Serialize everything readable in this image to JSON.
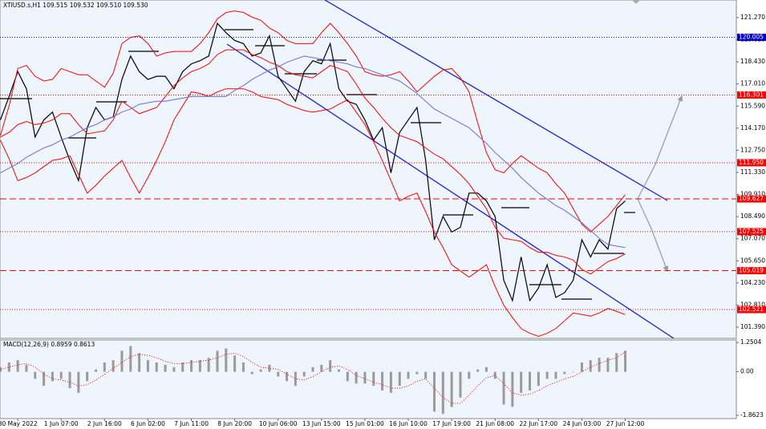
{
  "chart_data": [
    {
      "type": "line",
      "title": "XTIUSD.s,H1  109.515 109.532 109.510 109.530",
      "categories": [
        null,
        null,
        "30 May 2022",
        null,
        null,
        null,
        null,
        "1 Jun 07:00",
        null,
        null,
        null,
        null,
        "2 Jun 16:00",
        null,
        null,
        null,
        null,
        "6 Jun 02:00",
        null,
        null,
        null,
        null,
        "7 Jun 11:00",
        null,
        null,
        null,
        null,
        "8 Jun 20:00",
        null,
        null,
        null,
        null,
        "10 Jun 06:00",
        null,
        null,
        null,
        null,
        "13 Jun 15:00",
        null,
        null,
        null,
        null,
        "15 Jun 01:00",
        null,
        null,
        null,
        null,
        "16 Jun 10:00",
        null,
        null,
        null,
        null,
        "17 Jun 19:00",
        null,
        null,
        null,
        null,
        "21 Jun 08:00",
        null,
        null,
        null,
        null,
        "22 Jun 17:00",
        null,
        null,
        null,
        null,
        "24 Jun 03:00",
        null,
        null,
        null,
        null,
        "27 Jun 12:00"
      ],
      "series": [
        {
          "color": "#000000",
          "width": 1.2,
          "values": [
            114.7,
            116.2,
            117.8,
            116.7,
            113.6,
            114.7,
            115.2,
            113.6,
            112.1,
            110.8,
            114.2,
            115.5,
            114.7,
            114.9,
            117.3,
            118.8,
            117.8,
            117.3,
            117.5,
            117.5,
            116.7,
            117.8,
            118.3,
            118.5,
            118.8,
            120.9,
            120.3,
            119.8,
            119.6,
            118.8,
            119.0,
            120.1,
            117.5,
            116.7,
            115.9,
            117.8,
            118.5,
            118.3,
            119.6,
            116.7,
            115.9,
            115.7,
            114.7,
            113.4,
            114.2,
            111.3,
            113.9,
            114.7,
            115.5,
            112.1,
            107.0,
            108.5,
            107.5,
            107.8,
            110.0,
            110.0,
            109.5,
            108.5,
            104.4,
            103.1,
            105.9,
            103.1,
            103.9,
            105.4,
            103.3,
            103.6,
            104.4,
            107.0,
            105.9,
            107.0,
            106.4,
            109.0,
            109.5
          ]
        },
        {
          "color": "#ff0000",
          "width": 1,
          "values": [
            113.7,
            115.6,
            118.0,
            118.2,
            117.5,
            117.2,
            117.3,
            118.0,
            117.8,
            117.6,
            117.6,
            117.2,
            116.8,
            117.7,
            119.6,
            120.0,
            120.1,
            119.6,
            118.8,
            119.0,
            119.1,
            119.1,
            119.1,
            119.6,
            120.3,
            121.2,
            121.6,
            121.7,
            121.6,
            121.3,
            121.1,
            120.6,
            120.3,
            119.8,
            119.6,
            119.6,
            119.6,
            120.3,
            120.9,
            120.3,
            119.6,
            118.8,
            117.8,
            117.6,
            117.5,
            117.6,
            117.8,
            117.2,
            116.5,
            117.0,
            117.5,
            117.9,
            118.0,
            117.4,
            116.5,
            114.5,
            112.6,
            111.5,
            111.3,
            111.9,
            112.4,
            112.0,
            111.6,
            111.3,
            110.6,
            110.0,
            109.0,
            108.0,
            107.5,
            108.0,
            108.5,
            109.2,
            109.9
          ]
        },
        {
          "color": "#ff0000",
          "width": 1,
          "values": [
            113.6,
            113.9,
            114.4,
            114.6,
            114.4,
            114.5,
            114.7,
            115.1,
            115.1,
            114.4,
            113.8,
            113.9,
            114.0,
            114.7,
            115.9,
            115.5,
            115.1,
            115.3,
            115.5,
            116.2,
            116.9,
            117.4,
            117.8,
            118.0,
            118.3,
            118.9,
            119.2,
            119.2,
            119.2,
            118.9,
            118.7,
            118.4,
            118.2,
            117.8,
            117.6,
            117.5,
            117.4,
            117.8,
            118.2,
            118.0,
            117.8,
            117.0,
            116.1,
            115.5,
            114.8,
            114.2,
            113.7,
            113.5,
            113.3,
            112.9,
            112.5,
            112.2,
            111.7,
            111.2,
            110.6,
            109.8,
            109.0,
            107.8,
            107.1,
            107.0,
            106.9,
            106.5,
            106.2,
            106.2,
            106.0,
            105.9,
            105.7,
            105.1,
            104.8,
            105.2,
            105.6,
            105.8,
            106.1
          ]
        },
        {
          "color": "#ff0000",
          "width": 1,
          "values": [
            113.4,
            112.2,
            110.8,
            111.0,
            111.3,
            111.7,
            112.1,
            112.2,
            112.4,
            111.2,
            110.0,
            110.5,
            111.1,
            111.6,
            112.1,
            111.0,
            110.0,
            111.0,
            112.1,
            113.3,
            114.7,
            115.6,
            116.5,
            116.4,
            116.2,
            116.5,
            116.7,
            116.7,
            116.7,
            116.5,
            116.2,
            116.1,
            116.0,
            115.7,
            115.5,
            115.3,
            115.2,
            115.3,
            115.4,
            115.7,
            116.0,
            115.2,
            114.4,
            113.3,
            112.1,
            110.8,
            109.5,
            109.8,
            110.0,
            108.8,
            107.5,
            106.5,
            105.4,
            105.0,
            104.6,
            105.0,
            105.4,
            104.0,
            102.8,
            102.0,
            101.3,
            101.0,
            100.8,
            101.0,
            101.3,
            101.8,
            102.3,
            102.2,
            102.1,
            102.3,
            102.6,
            102.4,
            102.2
          ]
        },
        {
          "color": "#6b6bd6",
          "width": 1,
          "values": [
            111.3,
            111.6,
            111.9,
            112.3,
            112.6,
            112.9,
            113.1,
            113.4,
            113.6,
            113.9,
            114.2,
            114.4,
            114.7,
            114.9,
            115.2,
            115.4,
            115.7,
            115.8,
            115.9,
            115.9,
            116.0,
            116.1,
            116.2,
            116.2,
            116.2,
            116.2,
            116.2,
            116.6,
            116.9,
            117.3,
            117.6,
            117.9,
            118.1,
            118.4,
            118.6,
            118.8,
            118.7,
            118.6,
            118.5,
            118.4,
            118.3,
            118.1,
            118.0,
            117.8,
            117.6,
            117.4,
            117.2,
            116.8,
            116.4,
            115.9,
            115.4,
            115.1,
            114.8,
            114.5,
            114.2,
            113.7,
            113.2,
            112.6,
            112.1,
            111.6,
            111.0,
            110.5,
            110.0,
            109.6,
            109.2,
            108.9,
            108.5,
            108.1,
            107.6,
            107.1,
            106.7,
            106.6,
            106.5
          ]
        }
      ],
      "ylim": [
        100.67,
        122.4
      ],
      "yticks": [
        {
          "value": 121.27,
          "label": "121.270"
        },
        {
          "value": 119.85,
          "label": "119.850"
        },
        {
          "value": 118.43,
          "label": "118.430"
        },
        {
          "value": 117.01,
          "label": "117.010"
        },
        {
          "value": 115.59,
          "label": "115.590"
        },
        {
          "value": 114.17,
          "label": "114.170"
        },
        {
          "value": 112.75,
          "label": "112.750"
        },
        {
          "value": 111.33,
          "label": "111.330"
        },
        {
          "value": 109.91,
          "label": "109.910"
        },
        {
          "value": 108.49,
          "label": "108.490"
        },
        {
          "value": 107.07,
          "label": "107.070"
        },
        {
          "value": 105.65,
          "label": "105.650"
        },
        {
          "value": 104.23,
          "label": "104.230"
        },
        {
          "value": 102.81,
          "label": "102.810"
        },
        {
          "value": 101.39,
          "label": "101.390"
        }
      ],
      "levels": [
        {
          "value": 120.005,
          "label": "120.005",
          "color": "#0000cc",
          "dash": "dotted"
        },
        {
          "value": 116.301,
          "label": "116.301",
          "color": "#ff0000",
          "dash": "dotted"
        },
        {
          "value": 111.95,
          "label": "111.950",
          "color": "#ff0000",
          "dash": "dotted"
        },
        {
          "value": 109.627,
          "label": "109.627",
          "color": "#ff0000",
          "dash": "dashed"
        },
        {
          "value": 107.525,
          "label": "107.525",
          "color": "#ff0000",
          "dash": "dotted"
        },
        {
          "value": 105.019,
          "label": "105.019",
          "color": "#ff0000",
          "dash": "dashed"
        },
        {
          "value": 102.521,
          "label": "102.521",
          "color": "#ff0000",
          "dash": "dotted"
        }
      ]
    },
    {
      "type": "bar",
      "title": "MACD(12,26,9) 0.8959 0.8613",
      "color": "#9a9a9a",
      "values": [
        0.2,
        0.4,
        0.5,
        0.3,
        -0.3,
        -0.6,
        -0.4,
        -0.3,
        -0.7,
        -0.9,
        -0.4,
        0.1,
        0.4,
        0.5,
        0.9,
        1.1,
        0.8,
        0.5,
        0.4,
        0.3,
        0.2,
        0.4,
        0.5,
        0.5,
        0.6,
        0.9,
        1.0,
        0.7,
        0.4,
        -0.1,
        0.1,
        0.3,
        -0.2,
        -0.4,
        -0.6,
        -0.2,
        0.2,
        0.3,
        0.5,
        0.1,
        -0.4,
        -0.5,
        -0.5,
        -0.6,
        -0.8,
        -0.9,
        -0.6,
        -0.3,
        -0.1,
        -0.3,
        -1.7,
        -1.8,
        -1.5,
        -1.1,
        -0.3,
        0.1,
        0.2,
        -0.3,
        -1.4,
        -1.5,
        -0.9,
        -0.8,
        -0.6,
        -0.3,
        -0.3,
        -0.1,
        0.0,
        0.4,
        0.5,
        0.6,
        0.6,
        0.8,
        0.9
      ],
      "series": [
        {
          "color": "#ff0000",
          "dash": "dotted",
          "values": [
            0.1,
            0.2,
            0.3,
            0.35,
            0.2,
            -0.1,
            -0.3,
            -0.35,
            -0.45,
            -0.6,
            -0.55,
            -0.35,
            -0.1,
            0.15,
            0.4,
            0.65,
            0.75,
            0.7,
            0.6,
            0.45,
            0.35,
            0.35,
            0.4,
            0.45,
            0.5,
            0.6,
            0.75,
            0.8,
            0.65,
            0.4,
            0.2,
            0.15,
            0.1,
            -0.1,
            -0.3,
            -0.35,
            -0.2,
            0.0,
            0.2,
            0.25,
            0.1,
            -0.15,
            -0.3,
            -0.45,
            -0.55,
            -0.7,
            -0.7,
            -0.6,
            -0.4,
            -0.3,
            -0.7,
            -1.1,
            -1.35,
            -1.35,
            -1.0,
            -0.6,
            -0.25,
            -0.15,
            -0.5,
            -0.9,
            -1.0,
            -0.95,
            -0.8,
            -0.6,
            -0.45,
            -0.3,
            -0.2,
            0.0,
            0.2,
            0.35,
            0.5,
            0.6,
            0.86
          ]
        }
      ],
      "ylim": [
        -2.0,
        1.36
      ],
      "yticks": [
        1.2504,
        {
          "value": 0,
          "label": "0.00"
        },
        -1.8623
      ]
    }
  ]
}
